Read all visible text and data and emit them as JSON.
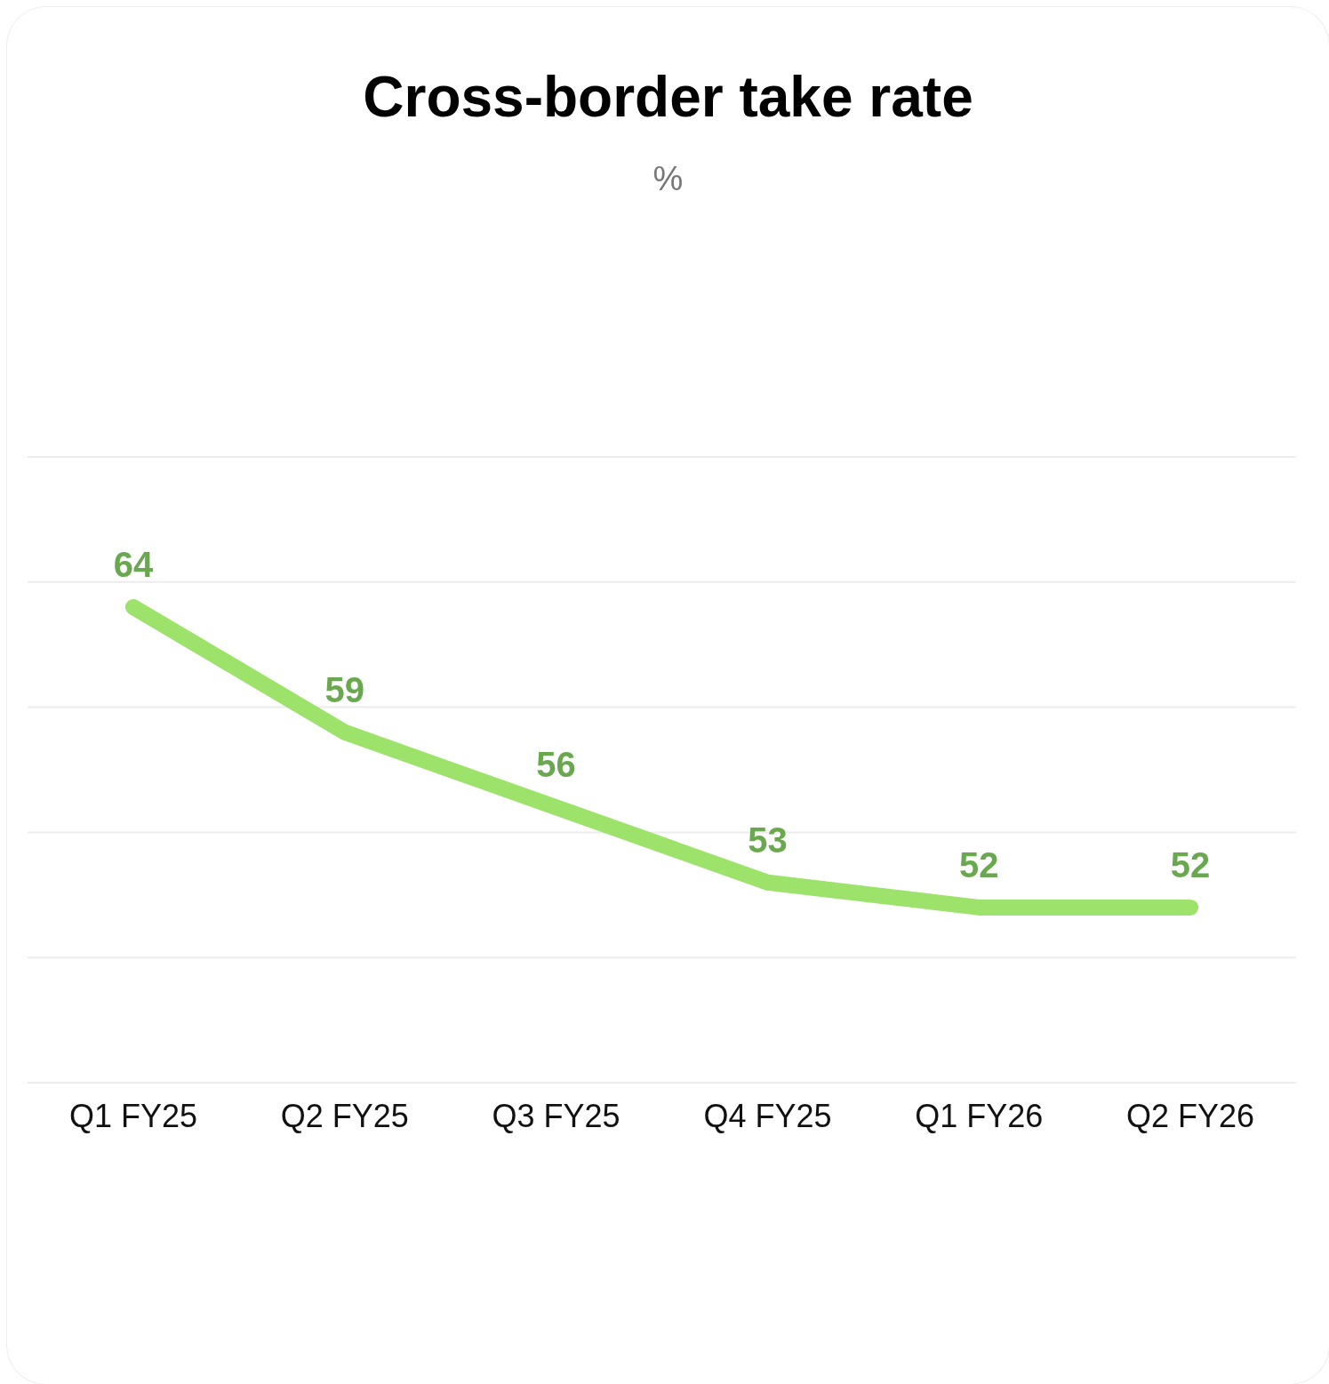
{
  "chart_data": {
    "type": "line",
    "title": "Cross-border take rate",
    "subtitle": "%",
    "categories": [
      "Q1 FY25",
      "Q2 FY25",
      "Q3 FY25",
      "Q4 FY25",
      "Q1 FY26",
      "Q2 FY26"
    ],
    "series": [
      {
        "color": "#9de36b",
        "values": [
          64,
          59,
          56,
          53,
          52,
          52
        ]
      }
    ],
    "ylim": [
      45,
      70
    ],
    "tick_labels": "x",
    "grid": "y",
    "data_labels": true,
    "marker": "none",
    "line_style": "solid",
    "legend": false
  }
}
